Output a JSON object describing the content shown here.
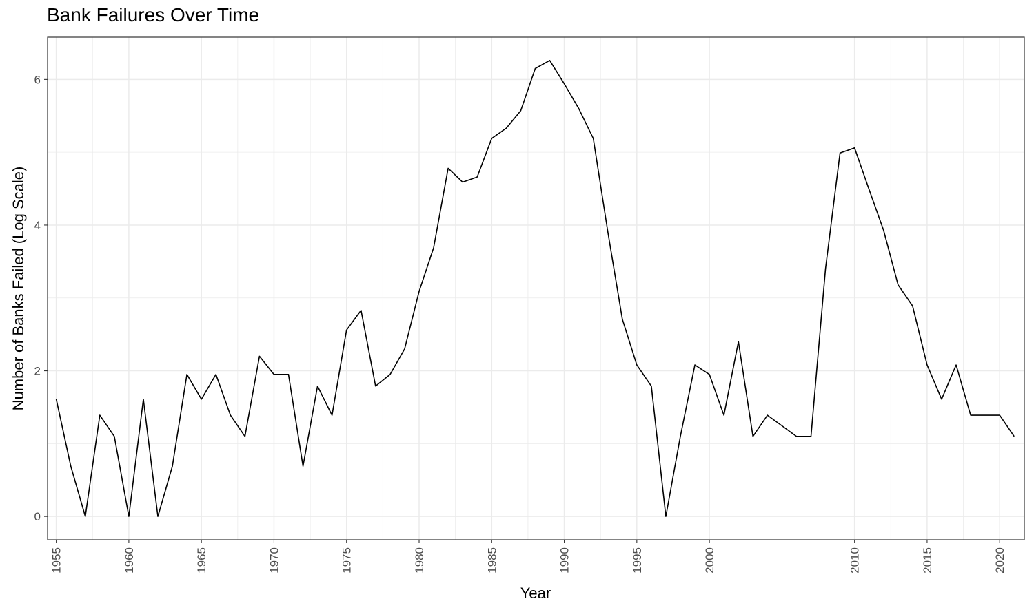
{
  "chart_data": {
    "type": "line",
    "title": "Bank Failures Over Time",
    "xlabel": "Year",
    "ylabel": "Number of Banks Failed (Log Scale)",
    "xlim": [
      1954.4,
      2021.7
    ],
    "ylim": [
      -0.32,
      6.58
    ],
    "x_ticks": [
      1955,
      1960,
      1965,
      1970,
      1975,
      1980,
      1985,
      1990,
      1995,
      2000,
      2010,
      2015,
      2020
    ],
    "y_ticks": [
      0,
      2,
      4,
      6
    ],
    "grid": true,
    "line_color": "#000000",
    "x": [
      1955,
      1956,
      1957,
      1958,
      1959,
      1960,
      1961,
      1962,
      1963,
      1964,
      1965,
      1966,
      1967,
      1968,
      1969,
      1970,
      1971,
      1972,
      1973,
      1974,
      1975,
      1976,
      1977,
      1978,
      1979,
      1980,
      1981,
      1982,
      1983,
      1984,
      1985,
      1986,
      1987,
      1988,
      1989,
      1990,
      1991,
      1992,
      1993,
      1994,
      1995,
      1996,
      1997,
      1998,
      1999,
      2000,
      2001,
      2002,
      2003,
      2004,
      2005,
      2006,
      2007,
      2008,
      2009,
      2010,
      2011,
      2012,
      2013,
      2014,
      2015,
      2016,
      2017,
      2018,
      2019,
      2020,
      2021
    ],
    "y": [
      1.61,
      0.69,
      0.0,
      1.39,
      1.1,
      0.0,
      1.61,
      0.0,
      0.69,
      1.95,
      1.61,
      1.95,
      1.39,
      1.1,
      2.2,
      1.95,
      1.95,
      0.69,
      1.79,
      1.39,
      2.56,
      2.83,
      1.79,
      1.95,
      2.3,
      3.09,
      3.69,
      4.78,
      4.59,
      4.66,
      5.19,
      5.33,
      5.57,
      6.15,
      6.26,
      5.94,
      5.6,
      5.19,
      3.91,
      2.71,
      2.08,
      1.79,
      0.0,
      1.1,
      2.08,
      1.95,
      1.39,
      2.4,
      1.1,
      1.39,
      null,
      1.1,
      1.1,
      3.4,
      4.99,
      5.06,
      4.49,
      3.93,
      3.18,
      2.89,
      2.08,
      1.61,
      2.08,
      1.39,
      1.39,
      1.39,
      1.1
    ]
  }
}
